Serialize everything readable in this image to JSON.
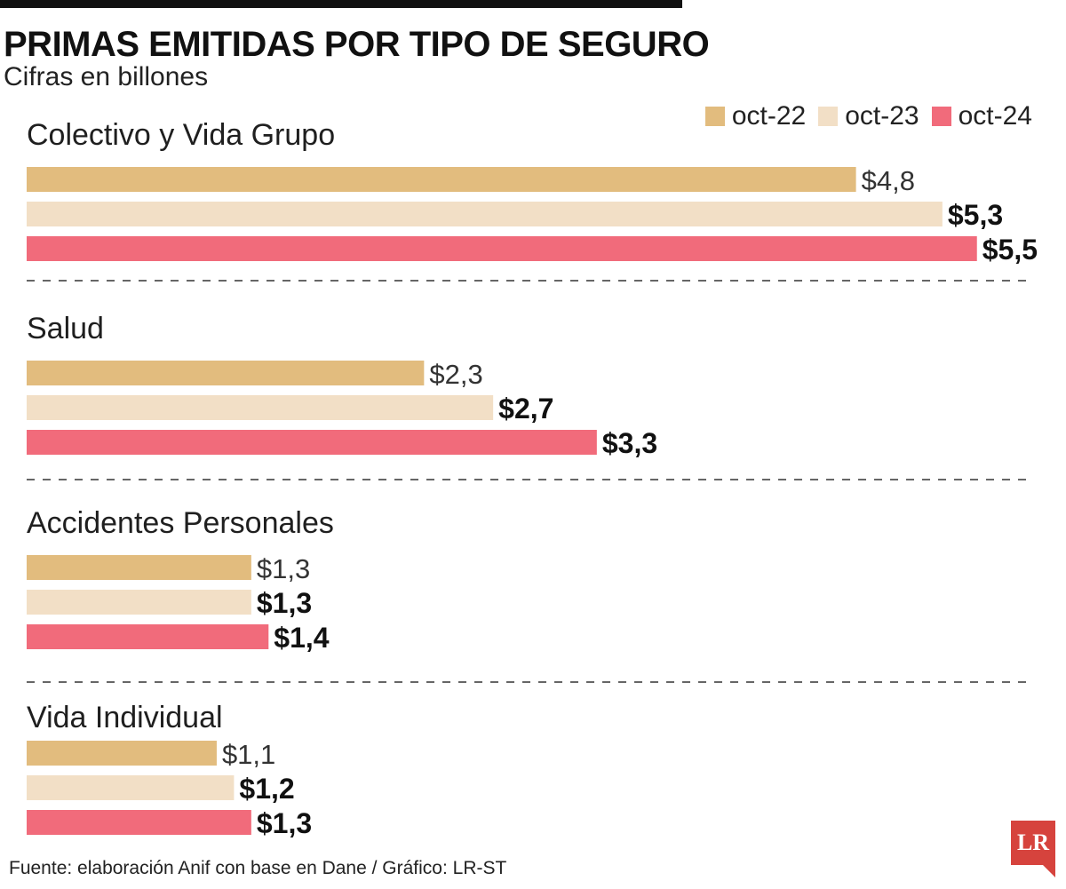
{
  "title": "PRIMAS EMITIDAS POR TIPO DE SEGURO",
  "subtitle": "Cifras en billones",
  "footer": "Fuente: elaboración Anif con base en Dane / Gráfico: LR-ST",
  "logo": {
    "text": "LR",
    "color": "#d6433d"
  },
  "colors": {
    "oct-22": "#e2bc7e",
    "oct-23": "#f2dfc6",
    "oct-24": "#f16b7b"
  },
  "legend": [
    {
      "label": "oct-22",
      "color": "#e2bc7e"
    },
    {
      "label": "oct-23",
      "color": "#f2dfc6"
    },
    {
      "label": "oct-24",
      "color": "#f16b7b"
    }
  ],
  "chart_data": {
    "type": "bar",
    "orientation": "horizontal",
    "title": "PRIMAS EMITIDAS POR TIPO DE SEGURO",
    "subtitle": "Cifras en billones",
    "categories": [
      "Colectivo y Vida Grupo",
      "Salud",
      "Accidentes Personales",
      "Vida Individual"
    ],
    "series": [
      {
        "name": "oct-22",
        "color": "#e2bc7e",
        "values": [
          4.8,
          2.3,
          1.3,
          1.1
        ],
        "labels": [
          "$4,8",
          "$2,3",
          "$1,3",
          "$1,1"
        ],
        "label_bold": false
      },
      {
        "name": "oct-23",
        "color": "#f2dfc6",
        "values": [
          5.3,
          2.7,
          1.3,
          1.2
        ],
        "labels": [
          "$5,3",
          "$2,7",
          "$1,3",
          "$1,2"
        ],
        "label_bold": true
      },
      {
        "name": "oct-24",
        "color": "#f16b7b",
        "values": [
          5.5,
          3.3,
          1.4,
          1.3
        ],
        "labels": [
          "$5,5",
          "$3,3",
          "$1,4",
          "$1,3"
        ],
        "label_bold": true
      }
    ],
    "xlim": [
      0,
      5.5
    ],
    "grid": false,
    "legend_position": "top-right",
    "group_separator": "dashed"
  }
}
